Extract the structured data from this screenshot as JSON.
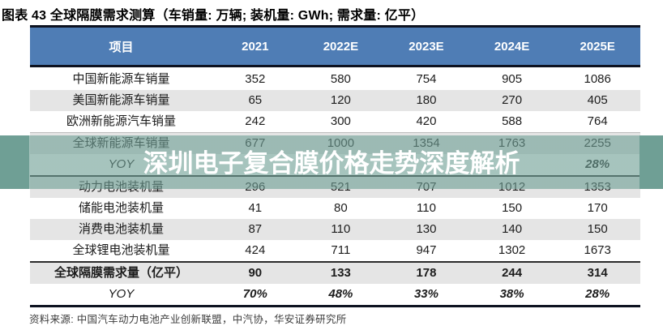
{
  "figure_title": "图表 43 全球隔膜需求测算（车销量: 万辆; 装机量: GWh; 需求量: 亿平）",
  "source_note": "资料来源: 中国汽车动力电池产业创新联盟，中汽协，华安证券研究所",
  "watermark_text": "深圳电子复合膜价格走势深度解析",
  "colors": {
    "header_blue": "#4f7db5",
    "stripe_gray": "#e5e5e5",
    "rule_dark": "#0d1220",
    "watermark_teal": "#6f9f95",
    "watermark_text_color": "#ffffff"
  },
  "chart_data": {
    "type": "table",
    "title": "全球隔膜需求测算",
    "units": "车销量: 万辆; 装机量: GWh; 需求量: 亿平",
    "columns": [
      "项目",
      "2021",
      "2022E",
      "2023E",
      "2024E",
      "2025E"
    ],
    "rows": [
      {
        "label": "中国新能源车销量",
        "values": [
          "352",
          "580",
          "754",
          "905",
          "1086"
        ]
      },
      {
        "label": "美国新能源车销量",
        "values": [
          "65",
          "120",
          "180",
          "270",
          "405"
        ]
      },
      {
        "label": "欧洲新能源汽车销量",
        "values": [
          "242",
          "300",
          "420",
          "588",
          "764"
        ]
      },
      {
        "label": "全球新能源车销量",
        "values": [
          "677",
          "1000",
          "1354",
          "1763",
          "2255"
        ],
        "sep": "light"
      },
      {
        "label": "YOY",
        "values": [
          "",
          "",
          "",
          "",
          "28%"
        ],
        "style": "yoy"
      },
      {
        "label": "动力电池装机量",
        "values": [
          "296",
          "521",
          "707",
          "1012",
          "1353"
        ],
        "sep": "dark"
      },
      {
        "label": "储能电池装机量",
        "values": [
          "41",
          "80",
          "110",
          "150",
          "170"
        ]
      },
      {
        "label": "消费电池装机量",
        "values": [
          "87",
          "110",
          "130",
          "140",
          "150"
        ]
      },
      {
        "label": "全球锂电池装机量",
        "values": [
          "424",
          "711",
          "947",
          "1302",
          "1673"
        ]
      },
      {
        "label": "全球隔膜需求量（亿平）",
        "values": [
          "90",
          "133",
          "178",
          "244",
          "314"
        ],
        "sep": "dark",
        "style": "bold"
      },
      {
        "label": "YOY",
        "values": [
          "70%",
          "48%",
          "33%",
          "38%",
          "28%"
        ],
        "style": "yoy"
      }
    ]
  }
}
